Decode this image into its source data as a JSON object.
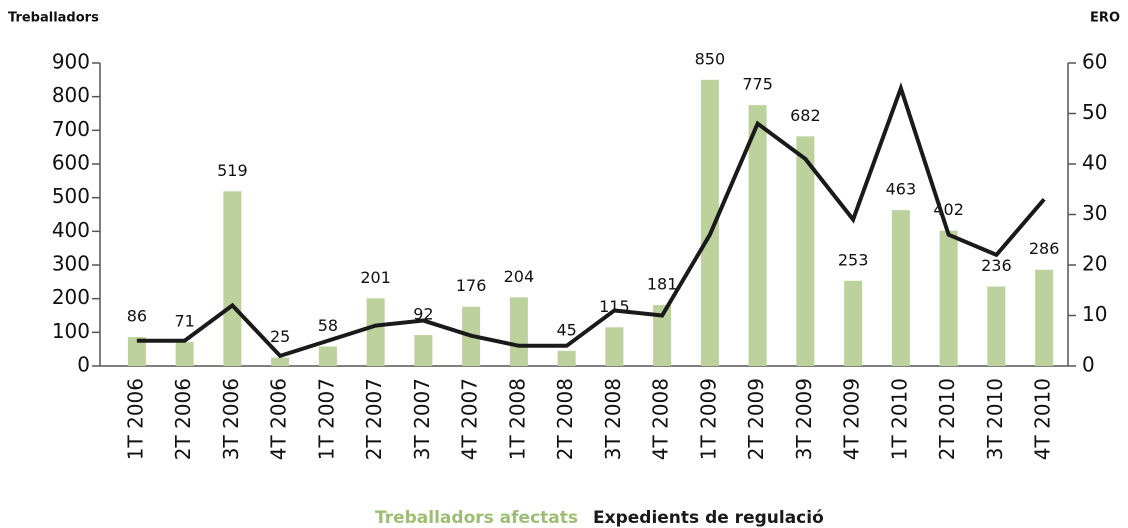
{
  "chart_data": {
    "type": "bar+line",
    "y_title": "Treballadors",
    "y2_title": "ERO",
    "categories": [
      "1T 2006",
      "2T 2006",
      "3T 2006",
      "4T 2006",
      "1T 2007",
      "2T 2007",
      "3T 2007",
      "4T 2007",
      "1T 2008",
      "2T 2008",
      "3T 2008",
      "4T 2008",
      "1T 2009",
      "2T 2009",
      "3T 2009",
      "4T 2009",
      "1T 2010",
      "2T 2010",
      "3T 2010",
      "4T 2010"
    ],
    "series": [
      {
        "name": "Treballadors afectats",
        "color": "#bcd19b",
        "kind": "bar",
        "values": [
          86,
          71,
          519,
          25,
          58,
          201,
          92,
          176,
          204,
          45,
          115,
          181,
          850,
          775,
          682,
          253,
          463,
          402,
          236,
          286
        ]
      },
      {
        "name": "Expedients de regulació",
        "color": "#1a1a1a",
        "kind": "line",
        "axis": "y2",
        "values": [
          5,
          5,
          12,
          2,
          5,
          8,
          9,
          6,
          4,
          4,
          11,
          10,
          26,
          48,
          41,
          29,
          55,
          26,
          22,
          33
        ]
      }
    ],
    "ylim": [
      0,
      900
    ],
    "yticks": [
      0,
      100,
      200,
      300,
      400,
      500,
      600,
      700,
      800,
      900
    ],
    "y2lim": [
      0,
      60
    ],
    "y2ticks": [
      0,
      10,
      20,
      30,
      40,
      50,
      60
    ]
  }
}
